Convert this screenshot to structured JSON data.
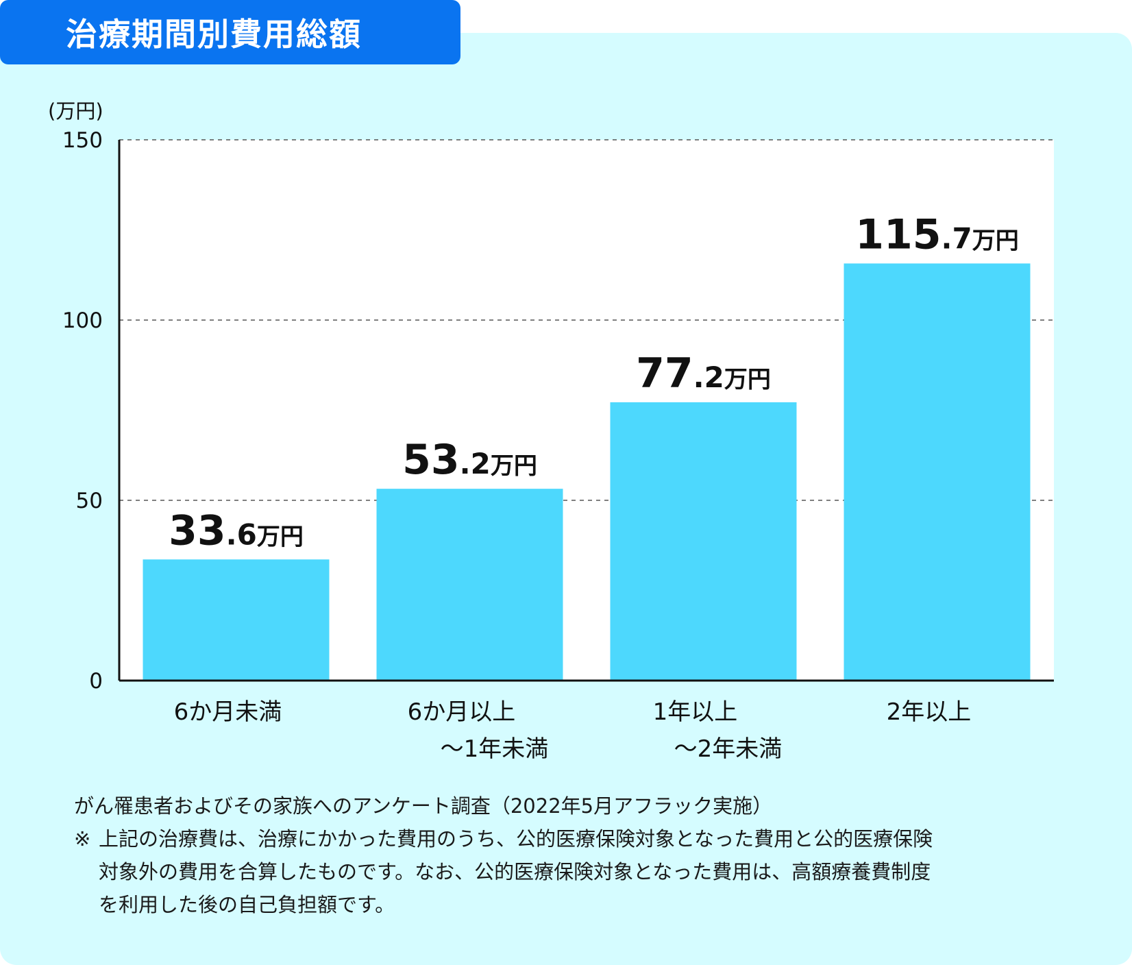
{
  "title": "治療期間別費用総額",
  "colors": {
    "panel": "#d5fcff",
    "title_bg": "#0a74f0",
    "bar": "#4dd8fd",
    "plot_bg": "#ffffff"
  },
  "chart_data": {
    "type": "bar",
    "unit_label": "(万円)",
    "categories": [
      [
        "6か月未満"
      ],
      [
        "6か月以上",
        "～1年未満"
      ],
      [
        "1年以上",
        "～2年未満"
      ],
      [
        "2年以上"
      ]
    ],
    "values": [
      33.6,
      53.2,
      77.2,
      115.7
    ],
    "value_labels": [
      {
        "int": "33",
        "dec": ".6",
        "unit": "万円"
      },
      {
        "int": "53",
        "dec": ".2",
        "unit": "万円"
      },
      {
        "int": "77",
        "dec": ".2",
        "unit": "万円"
      },
      {
        "int": "115",
        "dec": ".7",
        "unit": "万円"
      }
    ],
    "ylim": [
      0,
      150
    ],
    "yticks": [
      0,
      50,
      100,
      150
    ],
    "grid": "dashed horizontal",
    "legend": "none"
  },
  "notes": {
    "source": "がん罹患者およびその家族へのアンケート調査（2022年5月アフラック実施）",
    "mark": "※",
    "note_line1": "上記の治療費は、治療にかかった費用のうち、公的医療保険対象となった費用と公的医療保険",
    "note_line2": "対象外の費用を合算したものです。なお、公的医療保険対象となった費用は、高額療養費制度",
    "note_line3": "を利用した後の自己負担額です。"
  }
}
